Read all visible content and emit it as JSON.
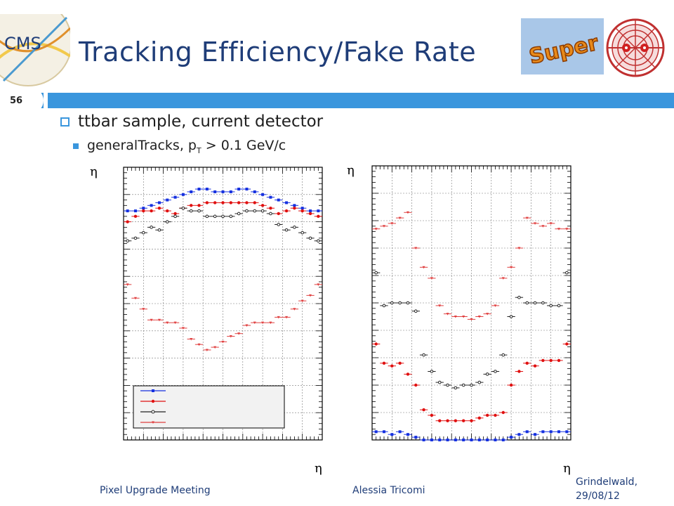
{
  "slide": {
    "title": "Tracking Efficiency/Fake Rate",
    "number": "56",
    "bullet1": "ttbar sample, current detector",
    "bullet2_prefix": "generalTracks, p",
    "bullet2_sub": "T",
    "bullet2_suffix": " > 0.1 GeV/c",
    "footer_left": "Pixel Upgrade Meeting",
    "footer_mid": "Alessia Tricomi",
    "footer_right_line1": "Grindelwald,",
    "footer_right_line2": "29/08/12",
    "logo_cms_text": "CMS",
    "logo_super_text": "Super"
  },
  "colors": {
    "accent": "#3a96dd",
    "title": "#1f3d78",
    "series_blue": "#1530e0",
    "series_red": "#e01010",
    "series_black": "#222222",
    "series_pink": "#e04040"
  },
  "chart_data": [
    {
      "type": "scatter",
      "title": "",
      "xlabel": "η",
      "ylabel": "η",
      "x": [
        -2.4,
        -2.2,
        -2.0,
        -1.8,
        -1.6,
        -1.4,
        -1.2,
        -1.0,
        -0.8,
        -0.6,
        -0.4,
        -0.2,
        0.0,
        0.2,
        0.4,
        0.6,
        0.8,
        1.0,
        1.2,
        1.4,
        1.6,
        1.8,
        2.0,
        2.2,
        2.4
      ],
      "xlim": [
        -2.5,
        2.5
      ],
      "ylim": [
        0,
        1
      ],
      "grid": true,
      "legend_position": "bottom-left",
      "series": [
        {
          "marker": "square",
          "color": "#1530e0",
          "values": [
            0.84,
            0.84,
            0.85,
            0.86,
            0.87,
            0.88,
            0.89,
            0.9,
            0.91,
            0.92,
            0.92,
            0.91,
            0.91,
            0.91,
            0.92,
            0.92,
            0.91,
            0.9,
            0.89,
            0.88,
            0.87,
            0.86,
            0.85,
            0.84,
            0.84
          ]
        },
        {
          "marker": "circle",
          "color": "#e01010",
          "values": [
            0.8,
            0.82,
            0.84,
            0.84,
            0.85,
            0.84,
            0.83,
            0.85,
            0.86,
            0.86,
            0.87,
            0.87,
            0.87,
            0.87,
            0.87,
            0.87,
            0.87,
            0.86,
            0.85,
            0.83,
            0.84,
            0.85,
            0.84,
            0.83,
            0.82
          ]
        },
        {
          "marker": "diamond",
          "color": "#222222",
          "values": [
            0.73,
            0.74,
            0.76,
            0.78,
            0.77,
            0.8,
            0.82,
            0.85,
            0.84,
            0.84,
            0.82,
            0.82,
            0.82,
            0.82,
            0.83,
            0.84,
            0.84,
            0.84,
            0.83,
            0.79,
            0.77,
            0.78,
            0.76,
            0.74,
            0.73
          ]
        },
        {
          "marker": "triangle",
          "color": "#e04040",
          "values": [
            0.57,
            0.52,
            0.48,
            0.44,
            0.44,
            0.43,
            0.43,
            0.41,
            0.37,
            0.35,
            0.33,
            0.34,
            0.36,
            0.38,
            0.39,
            0.42,
            0.43,
            0.43,
            0.43,
            0.45,
            0.45,
            0.48,
            0.51,
            0.53,
            0.57
          ]
        }
      ]
    },
    {
      "type": "scatter",
      "title": "",
      "xlabel": "η",
      "ylabel": "η",
      "x": [
        -2.4,
        -2.2,
        -2.0,
        -1.8,
        -1.6,
        -1.4,
        -1.2,
        -1.0,
        -0.8,
        -0.6,
        -0.4,
        -0.2,
        0.0,
        0.2,
        0.4,
        0.6,
        0.8,
        1.0,
        1.2,
        1.4,
        1.6,
        1.8,
        2.0,
        2.2,
        2.4
      ],
      "xlim": [
        -2.5,
        2.5
      ],
      "ylim": [
        0,
        1
      ],
      "grid": true,
      "series": [
        {
          "marker": "square",
          "color": "#1530e0",
          "values": [
            0.03,
            0.03,
            0.02,
            0.03,
            0.02,
            0.01,
            0.0,
            0.0,
            0.0,
            0.0,
            0.0,
            0.0,
            0.0,
            0.0,
            0.0,
            0.0,
            0.0,
            0.01,
            0.02,
            0.03,
            0.02,
            0.03,
            0.03,
            0.03,
            0.03
          ]
        },
        {
          "marker": "circle",
          "color": "#e01010",
          "values": [
            0.35,
            0.28,
            0.27,
            0.28,
            0.24,
            0.2,
            0.11,
            0.09,
            0.07,
            0.07,
            0.07,
            0.07,
            0.07,
            0.08,
            0.09,
            0.09,
            0.1,
            0.2,
            0.25,
            0.28,
            0.27,
            0.29,
            0.29,
            0.29,
            0.35
          ]
        },
        {
          "marker": "diamond",
          "color": "#222222",
          "values": [
            0.61,
            0.49,
            0.5,
            0.5,
            0.5,
            0.47,
            0.31,
            0.25,
            0.21,
            0.2,
            0.19,
            0.2,
            0.2,
            0.21,
            0.24,
            0.25,
            0.31,
            0.45,
            0.52,
            0.5,
            0.5,
            0.5,
            0.49,
            0.49,
            0.61
          ]
        },
        {
          "marker": "triangle",
          "color": "#e04040",
          "values": [
            0.77,
            0.78,
            0.79,
            0.81,
            0.83,
            0.7,
            0.63,
            0.59,
            0.49,
            0.46,
            0.45,
            0.45,
            0.44,
            0.45,
            0.46,
            0.49,
            0.59,
            0.63,
            0.7,
            0.81,
            0.79,
            0.78,
            0.79,
            0.77,
            0.77
          ]
        }
      ]
    }
  ]
}
